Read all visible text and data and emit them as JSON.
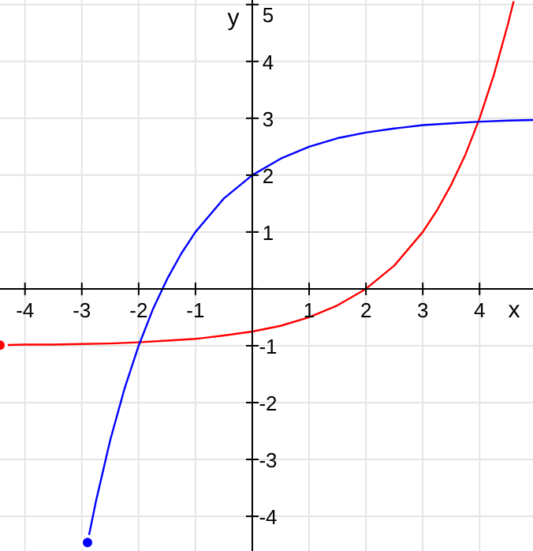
{
  "chart_data": {
    "type": "line",
    "xlabel": "x",
    "ylabel": "y",
    "xlim": [
      -4.44,
      4.94
    ],
    "ylim": [
      -4.61,
      5.08
    ],
    "xticks": [
      -4,
      -3,
      -2,
      -1,
      {
        "value": 0,
        "label": null
      },
      1,
      2,
      3,
      4
    ],
    "yticks": [
      -4,
      -3,
      -2,
      -1,
      {
        "value": 0,
        "label": null
      },
      1,
      2,
      3,
      4,
      5
    ],
    "grid": true,
    "marker": "none",
    "line_style": "solid",
    "series": [
      {
        "color": "#ff0000",
        "x": [
          -4.44,
          -4,
          -3.5,
          -3,
          -2.5,
          -2,
          -1.5,
          -1,
          -0.5,
          0,
          0.5,
          1,
          1.5,
          2,
          2.5,
          3,
          3.25,
          3.5,
          3.75,
          4,
          4.25,
          4.5,
          4.6
        ],
        "values": [
          -0.99,
          -0.98,
          -0.98,
          -0.97,
          -0.96,
          -0.94,
          -0.91,
          -0.88,
          -0.82,
          -0.75,
          -0.65,
          -0.5,
          -0.29,
          0,
          0.41,
          1,
          1.38,
          1.83,
          2.36,
          3,
          3.76,
          4.66,
          5.06
        ]
      },
      {
        "color": "#0000ff",
        "x": [
          -2.9,
          -2.75,
          -2.5,
          -2.25,
          -2,
          -1.75,
          -1.5,
          -1.25,
          -1,
          -0.5,
          0,
          0.5,
          1,
          1.5,
          2,
          2.5,
          3,
          3.5,
          4,
          4.5,
          4.94
        ],
        "values": [
          -4.46,
          -3.73,
          -2.66,
          -1.76,
          -1,
          -0.36,
          0.17,
          0.62,
          1,
          1.59,
          2,
          2.29,
          2.5,
          2.65,
          2.75,
          2.82,
          2.88,
          2.91,
          2.94,
          2.96,
          2.97
        ]
      }
    ]
  }
}
